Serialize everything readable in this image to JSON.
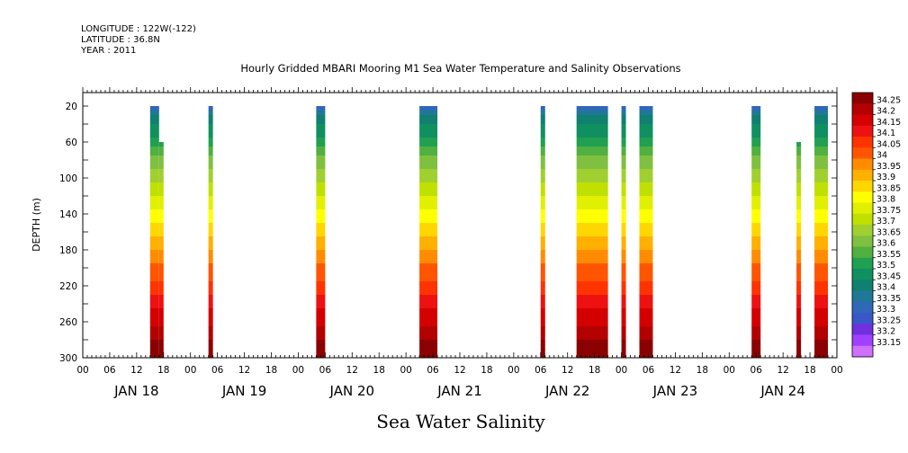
{
  "header": {
    "longitude": "LONGITUDE : 122W(-122)",
    "latitude": "LATITUDE : 36.8N",
    "year": "YEAR : 2011"
  },
  "chart_data": {
    "type": "heatmap",
    "title": "Hourly Gridded MBARI Mooring M1 Sea Water Temperature and Salinity Observations",
    "xlabel": "Sea Water Salinity",
    "ylabel": "DEPTH (m)",
    "hour_ticks": [
      "00",
      "06",
      "12",
      "18",
      "00",
      "06",
      "12",
      "18",
      "00",
      "06",
      "12",
      "18",
      "00",
      "06",
      "12",
      "18",
      "00",
      "06",
      "12",
      "18",
      "00",
      "06",
      "12",
      "18",
      "00",
      "06",
      "12",
      "18",
      "00"
    ],
    "day_labels": [
      "JAN 18",
      "JAN 19",
      "JAN 20",
      "JAN 21",
      "JAN 22",
      "JAN 23",
      "JAN 24"
    ],
    "y_ticks": [
      20,
      60,
      100,
      140,
      180,
      220,
      260,
      300
    ],
    "ylim": [
      300,
      5
    ],
    "colorbar": {
      "levels": [
        "34.25",
        "34.2",
        "34.15",
        "34.1",
        "34.05",
        "34",
        "33.95",
        "33.9",
        "33.85",
        "33.8",
        "33.75",
        "33.7",
        "33.65",
        "33.6",
        "33.55",
        "33.5",
        "33.45",
        "33.4",
        "33.35",
        "33.3",
        "33.25",
        "33.2",
        "33.15"
      ],
      "colors": [
        "#8b0000",
        "#b30000",
        "#d40000",
        "#ee1111",
        "#ff3300",
        "#ff5500",
        "#ff8c00",
        "#ffb000",
        "#ffd700",
        "#ffff00",
        "#e0f000",
        "#c0e000",
        "#a0d030",
        "#80c040",
        "#50b040",
        "#20a050",
        "#109060",
        "#108070",
        "#207898",
        "#3068b8",
        "#3858c8",
        "#7030e0",
        "#a040ff",
        "#d070ff"
      ]
    },
    "columns": [
      {
        "start_day": 0,
        "start_hour": 15,
        "end_hour": 17,
        "top": 20
      },
      {
        "start_day": 0,
        "start_hour": 17,
        "end_hour": 18,
        "top": 60
      },
      {
        "start_day": 1,
        "start_hour": 4,
        "end_hour": 5,
        "top": 20
      },
      {
        "start_day": 2,
        "start_hour": 4,
        "end_hour": 6,
        "top": 20
      },
      {
        "start_day": 3,
        "start_hour": 3,
        "end_hour": 7,
        "top": 20
      },
      {
        "start_day": 4,
        "start_hour": 6,
        "end_hour": 7,
        "top": 20
      },
      {
        "start_day": 4,
        "start_hour": 14,
        "end_hour": 21,
        "top": 20
      },
      {
        "start_day": 5,
        "start_hour": 0,
        "end_hour": 1,
        "top": 20
      },
      {
        "start_day": 5,
        "start_hour": 4,
        "end_hour": 7,
        "top": 20
      },
      {
        "start_day": 6,
        "start_hour": 5,
        "end_hour": 7,
        "top": 20
      },
      {
        "start_day": 6,
        "start_hour": 15,
        "end_hour": 16,
        "top": 60
      },
      {
        "start_day": 6,
        "start_hour": 19,
        "end_hour": 22,
        "top": 20
      }
    ]
  }
}
